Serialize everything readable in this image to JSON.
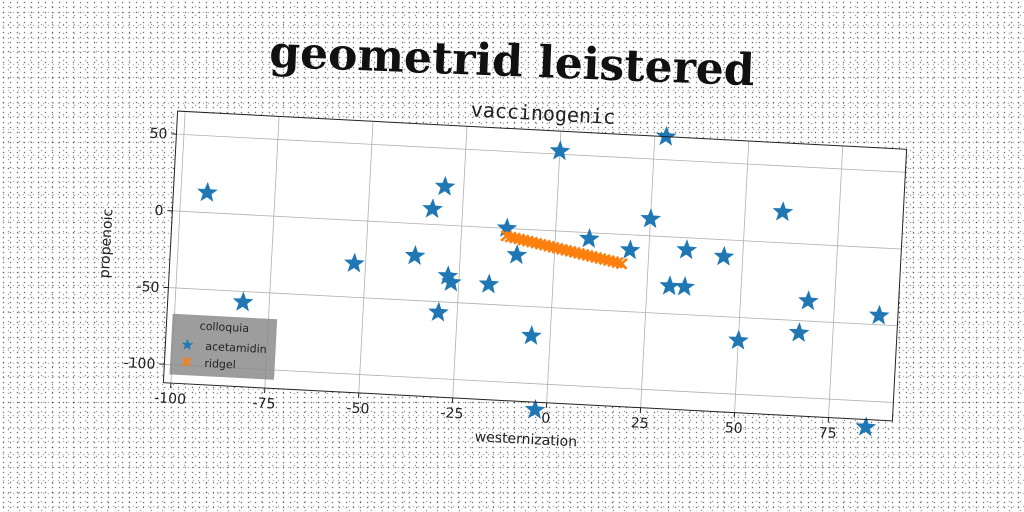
{
  "suptitle": "geometrid leistered",
  "chart_data": {
    "type": "scatter",
    "title": "vaccinogenic",
    "xlabel": "westernization",
    "ylabel": "propenoic",
    "xlim": [
      -102,
      92
    ],
    "ylim": [
      -112,
      65
    ],
    "xticks": [
      -100,
      -75,
      -50,
      -25,
      0,
      25,
      50,
      75
    ],
    "yticks": [
      -100,
      -50,
      0,
      50
    ],
    "grid": true,
    "legend": {
      "title": "colloquia",
      "position": "lower-left"
    },
    "colors": {
      "acetamidin": "#1f77b4",
      "ridgel": "#ff7f0e"
    },
    "series": [
      {
        "name": "acetamidin",
        "marker": "star",
        "points": [
          [
            -93,
            13
          ],
          [
            -82,
            -57
          ],
          [
            -53,
            -28
          ],
          [
            -37,
            -21
          ],
          [
            -33,
            10
          ],
          [
            -30,
            25
          ],
          [
            -30,
            -57
          ],
          [
            -28,
            -33
          ],
          [
            -27,
            -37
          ],
          [
            -17,
            -37
          ],
          [
            -13,
            0
          ],
          [
            -10,
            -17
          ],
          [
            -5,
            -69
          ],
          [
            -3,
            -117
          ],
          [
            0,
            52
          ],
          [
            9,
            -4
          ],
          [
            20,
            -10
          ],
          [
            25,
            11
          ],
          [
            28,
            65
          ],
          [
            31,
            -32
          ],
          [
            35,
            -8
          ],
          [
            35,
            -32
          ],
          [
            45,
            -11
          ],
          [
            50,
            -65
          ],
          [
            60,
            20
          ],
          [
            66,
            -58
          ],
          [
            68,
            -37
          ],
          [
            85,
            -117
          ],
          [
            87,
            -44
          ]
        ]
      },
      {
        "name": "ridgel",
        "marker": "x",
        "line": {
          "x_start": -13,
          "y_start": -5,
          "x_end": 18,
          "y_end": -19,
          "count": 28
        }
      }
    ]
  }
}
